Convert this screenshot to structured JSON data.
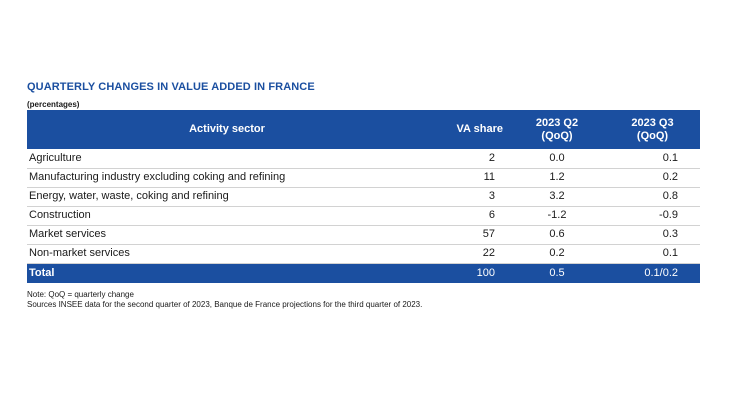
{
  "title": "QUARTERLY CHANGES IN VALUE ADDED IN FRANCE",
  "subtitle": "(percentages)",
  "table": {
    "headers": {
      "sector": "Activity sector",
      "va_share": "VA share",
      "q2_line1": "2023 Q2",
      "q2_line2": "(QoQ)",
      "q3_line1": "2023 Q3",
      "q3_line2": "(QoQ)"
    },
    "rows": [
      {
        "sector": "Agriculture",
        "va_share": "2",
        "q2": "0.0",
        "q3": "0.1"
      },
      {
        "sector": "Manufacturing industry excluding coking and refining",
        "va_share": "11",
        "q2": "1.2",
        "q3": "0.2"
      },
      {
        "sector": "Energy, water, waste, coking and refining",
        "va_share": "3",
        "q2": "3.2",
        "q3": "0.8"
      },
      {
        "sector": "Construction",
        "va_share": "6",
        "q2": "-1.2",
        "q3": "-0.9"
      },
      {
        "sector": "Market services",
        "va_share": "57",
        "q2": "0.6",
        "q3": "0.3"
      },
      {
        "sector": "Non-market services",
        "va_share": "22",
        "q2": "0.2",
        "q3": "0.1"
      }
    ],
    "total": {
      "sector": "Total",
      "va_share": "100",
      "q2": "0.5",
      "q3": "0.1/0.2"
    }
  },
  "notes": {
    "line1": "Note: QoQ = quarterly change",
    "line2": "Sources INSEE data for the second quarter of 2023, Banque de France projections for the third quarter of 2023."
  },
  "colors": {
    "header_bg": "#1b4fa0",
    "title": "#1b4fa0"
  }
}
